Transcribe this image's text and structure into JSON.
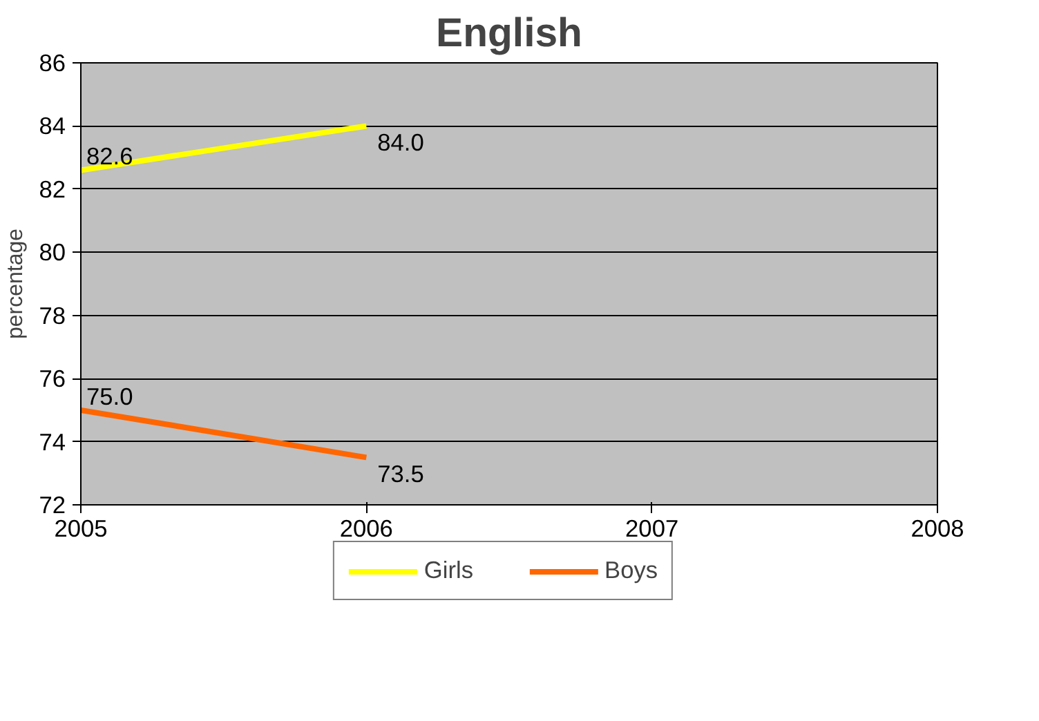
{
  "chart_data": {
    "type": "line",
    "title": "English",
    "ylabel": "percentage",
    "x": [
      2005,
      2006
    ],
    "series": [
      {
        "name": "Girls",
        "color": "#ffff00",
        "values": [
          82.6,
          84.0
        ],
        "value_labels": [
          "82.6",
          "84.0"
        ]
      },
      {
        "name": "Boys",
        "color": "#ff6600",
        "values": [
          75.0,
          73.5
        ],
        "value_labels": [
          "75.0",
          "73.5"
        ]
      }
    ],
    "xlim": [
      2005,
      2008
    ],
    "xticks": [
      2005,
      2006,
      2007,
      2008
    ],
    "ylim": [
      72,
      86
    ],
    "yticks": [
      72,
      74,
      76,
      78,
      80,
      82,
      84,
      86
    ],
    "grid": "y",
    "legend": "bottom",
    "marker": "none",
    "line_style": "solid"
  }
}
